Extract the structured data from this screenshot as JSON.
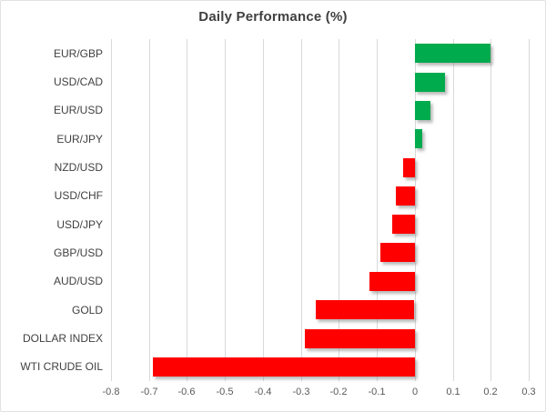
{
  "chart": {
    "title": "Daily Performance (%)"
  },
  "chart_data": {
    "type": "bar",
    "orientation": "horizontal",
    "title": "Daily Performance (%)",
    "categories": [
      "EUR/GBP",
      "USD/CAD",
      "EUR/USD",
      "EUR/JPY",
      "NZD/USD",
      "USD/CHF",
      "USD/JPY",
      "GBP/USD",
      "AUD/USD",
      "GOLD",
      "DOLLAR INDEX",
      "WTI CRUDE OIL"
    ],
    "values": [
      0.2,
      0.08,
      0.04,
      0.02,
      -0.03,
      -0.05,
      -0.06,
      -0.09,
      -0.12,
      -0.26,
      -0.29,
      -0.69
    ],
    "xlabel": "",
    "ylabel": "",
    "xlim": [
      -0.8,
      0.3
    ],
    "x_ticks": [
      -0.8,
      -0.7,
      -0.6,
      -0.5,
      -0.4,
      -0.3,
      -0.2,
      -0.1,
      0,
      0.1,
      0.2,
      0.3
    ],
    "x_tick_labels": [
      "-0.8",
      "-0.7",
      "-0.6",
      "-0.5",
      "-0.4",
      "-0.3",
      "-0.2",
      "-0.1",
      "0",
      "0.1",
      "0.2",
      "0.3"
    ],
    "grid": "vertical",
    "legend_position": "none",
    "colors": {
      "positive": "#00ab4e",
      "negative": "#ff0000",
      "gridline": "#d9d9d9",
      "title_text": "#404040",
      "label_text": "#404040",
      "tick_text": "#595959"
    }
  }
}
